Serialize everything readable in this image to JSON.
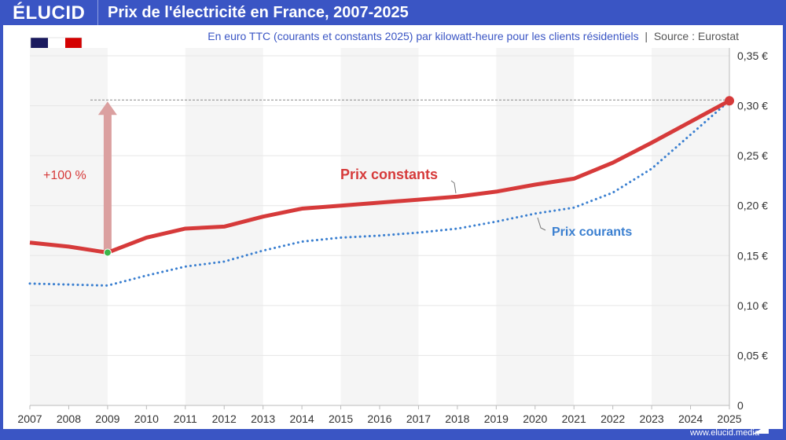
{
  "header": {
    "logo": "ÉLUCID",
    "title": "Prix de l'électricité en France, 2007-2025"
  },
  "subtitle": "En euro TTC (courants et constants 2025) par kilowatt-heure pour les clients résidentiels",
  "subtitle_sep": "|",
  "source": "Source : Eurostat",
  "footer": "www.elucid.media",
  "colors": {
    "brand": "#3a55c4",
    "constants": "#d63a3a",
    "courants": "#3a7fd0",
    "arrow": "#dba0a0",
    "start_dot": "#3cb54a"
  },
  "chart_data": {
    "type": "line",
    "x": [
      2007,
      2008,
      2009,
      2010,
      2011,
      2012,
      2013,
      2014,
      2015,
      2016,
      2017,
      2018,
      2019,
      2020,
      2021,
      2022,
      2023,
      2024,
      2025
    ],
    "series": [
      {
        "name": "Prix constants",
        "values": [
          0.163,
          0.159,
          0.153,
          0.168,
          0.177,
          0.179,
          0.189,
          0.197,
          0.2,
          0.203,
          0.206,
          0.209,
          0.214,
          0.221,
          0.227,
          0.243,
          0.263,
          0.284,
          0.305
        ]
      },
      {
        "name": "Prix courants",
        "values": [
          0.122,
          0.121,
          0.12,
          0.13,
          0.139,
          0.144,
          0.155,
          0.164,
          0.168,
          0.17,
          0.173,
          0.177,
          0.184,
          0.192,
          0.198,
          0.213,
          0.237,
          0.271,
          0.305
        ]
      }
    ],
    "xlim": [
      2007,
      2025
    ],
    "ylim": [
      0,
      0.35
    ],
    "yticks": [
      "0",
      "0,05 €",
      "0,10 €",
      "0,15 €",
      "0,20 €",
      "0,25 €",
      "0,30 €",
      "0,35 €"
    ],
    "annotation": "+100 %",
    "grid": true,
    "legend": "inline labels"
  }
}
